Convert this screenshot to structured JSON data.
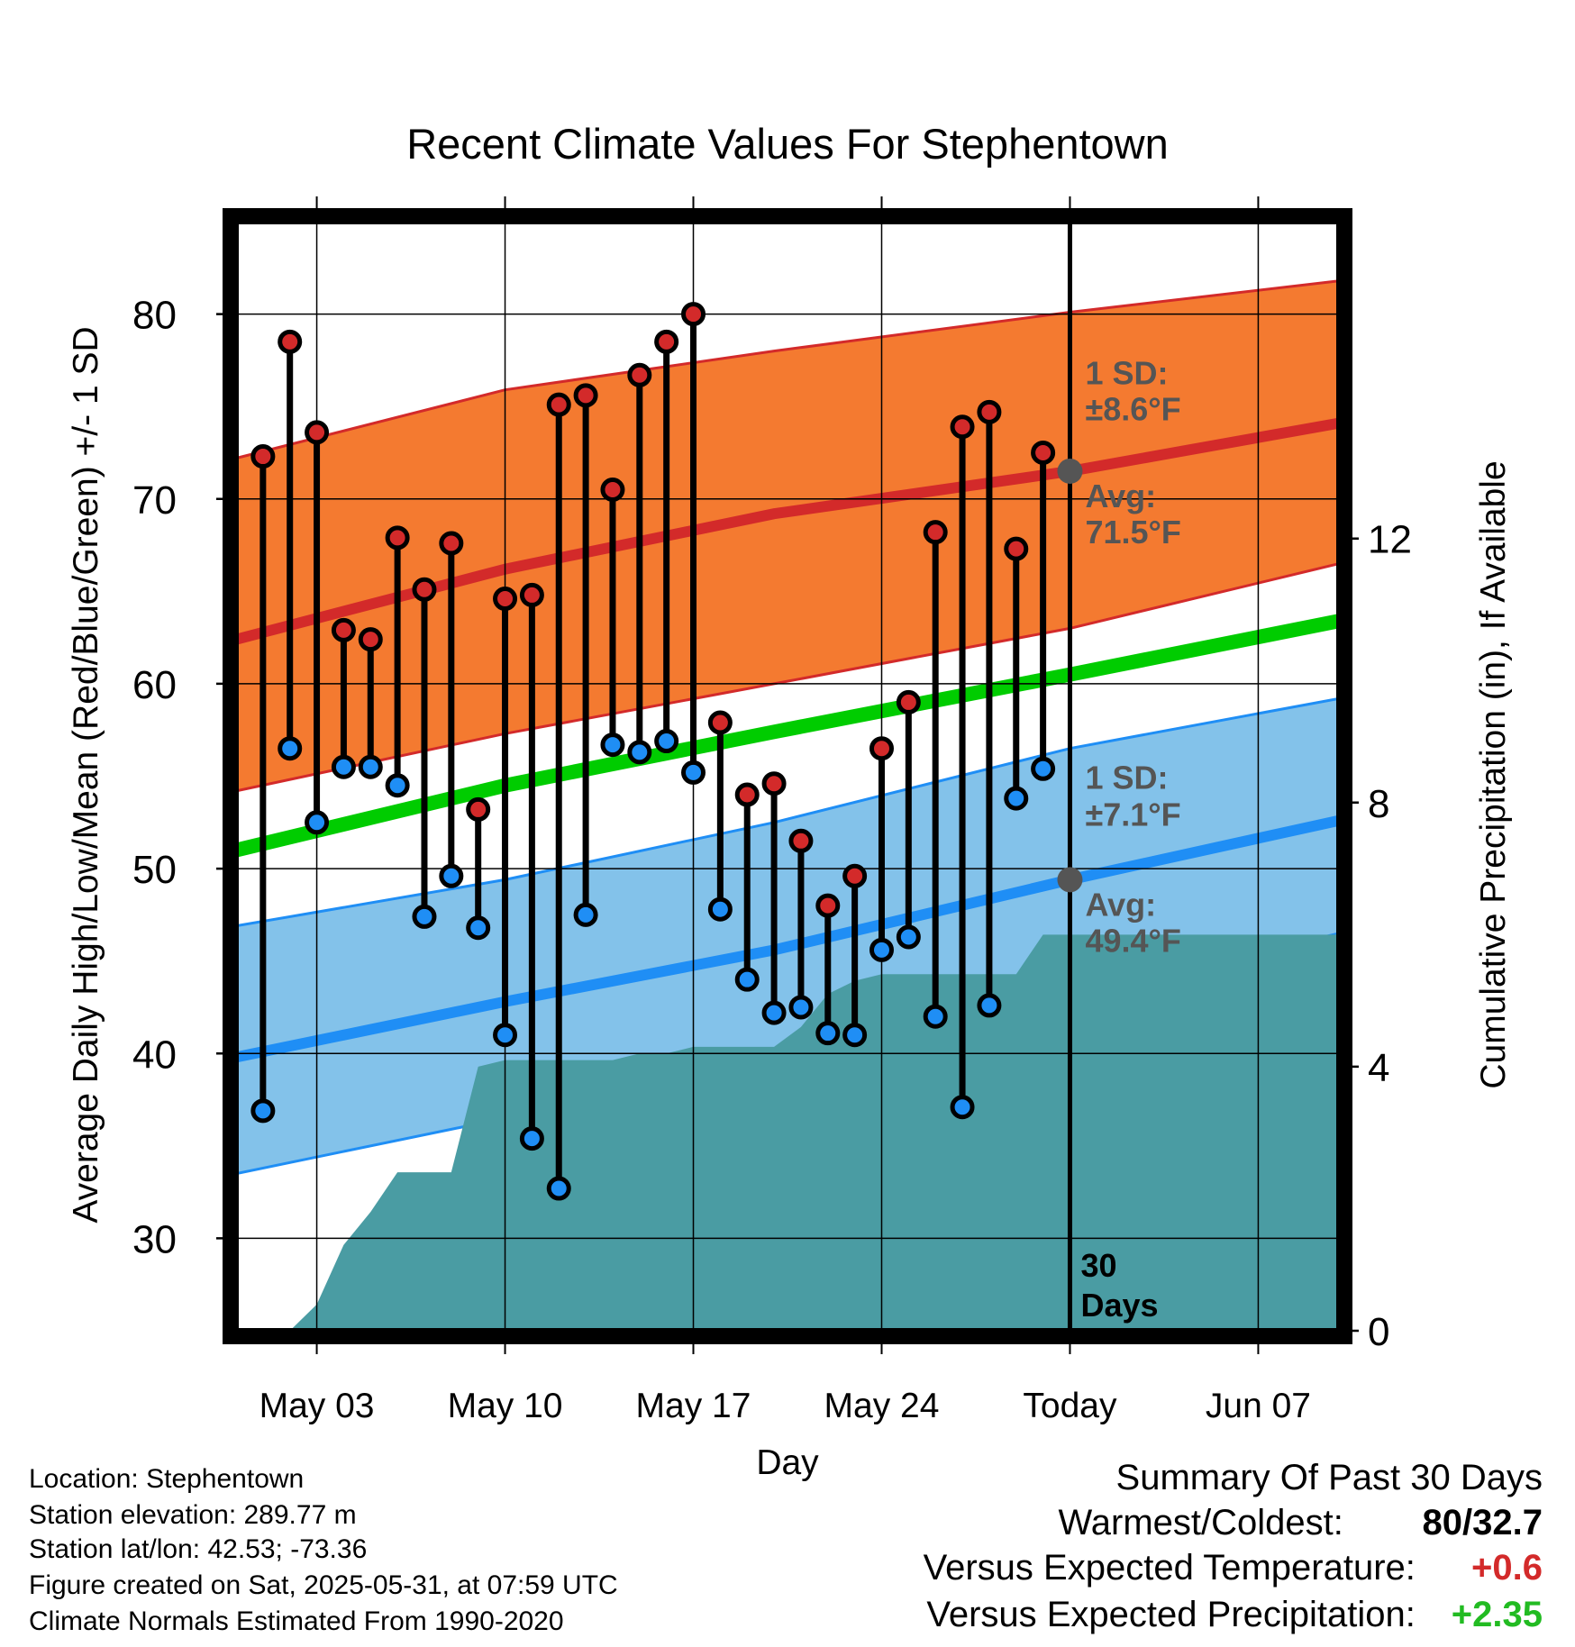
{
  "chart_data": {
    "type": "line",
    "title": "Recent Climate Values For Stephentown",
    "xlabel": "Day",
    "ylabel": "Average Daily High/Low/Mean (Red/Blue/Green) +/- 1 SD",
    "y2label": "Cumulative Precipitation (in), If Available",
    "x_range": [
      "2025-04-30",
      "2025-06-10"
    ],
    "y_range": [
      25,
      85
    ],
    "y2_range": [
      0,
      16.8
    ],
    "y_ticks": [
      "30",
      "40",
      "50",
      "60",
      "70",
      "80"
    ],
    "y2_ticks": [
      "0",
      "4",
      "8",
      "12"
    ],
    "x_ticks": [
      {
        "date": "2025-05-03",
        "label": "May 03"
      },
      {
        "date": "2025-05-10",
        "label": "May 10"
      },
      {
        "date": "2025-05-17",
        "label": "May 17"
      },
      {
        "date": "2025-05-24",
        "label": "May 24"
      },
      {
        "date": "2025-05-31",
        "label": "Today"
      },
      {
        "date": "2025-06-07",
        "label": "Jun 07"
      }
    ],
    "grid": true,
    "today": "2025-05-31",
    "today_label": "30\nDays",
    "colors": {
      "high": "#d32a2a",
      "low": "#1f8ef5",
      "mean": "#00cc00",
      "high_band": "#f47a30",
      "low_band": "#83c2ea",
      "precip": "#4a9ca3",
      "avg_dot": "#555555",
      "annotation": "#555555"
    },
    "normals": {
      "dates": [
        "2025-04-30",
        "2025-05-10",
        "2025-05-20",
        "2025-05-31",
        "2025-06-10"
      ],
      "high": [
        62.4,
        66.2,
        69.2,
        71.5,
        74.1
      ],
      "high_sd_upper": [
        72.2,
        75.9,
        78.0,
        80.1,
        81.8
      ],
      "high_sd_lower": [
        54.2,
        57.3,
        60.0,
        63.0,
        66.5
      ],
      "low": [
        39.8,
        42.8,
        45.6,
        49.4,
        52.6
      ],
      "low_sd_upper": [
        46.9,
        49.4,
        52.5,
        56.5,
        59.2
      ],
      "low_sd_lower": [
        33.5,
        36.5,
        39.5,
        43.1,
        46.5
      ],
      "mean": [
        51.0,
        54.5,
        57.4,
        60.5,
        63.4
      ]
    },
    "series": [
      {
        "name": "High",
        "x": [
          "2025-05-01",
          "2025-05-02",
          "2025-05-03",
          "2025-05-04",
          "2025-05-05",
          "2025-05-06",
          "2025-05-07",
          "2025-05-08",
          "2025-05-09",
          "2025-05-10",
          "2025-05-11",
          "2025-05-12",
          "2025-05-13",
          "2025-05-14",
          "2025-05-15",
          "2025-05-16",
          "2025-05-17",
          "2025-05-18",
          "2025-05-19",
          "2025-05-20",
          "2025-05-21",
          "2025-05-22",
          "2025-05-23",
          "2025-05-24",
          "2025-05-25",
          "2025-05-26",
          "2025-05-27",
          "2025-05-28",
          "2025-05-29",
          "2025-05-30"
        ],
        "values": [
          72.3,
          78.5,
          73.6,
          62.9,
          62.4,
          67.9,
          65.1,
          67.6,
          53.2,
          64.6,
          64.8,
          75.1,
          75.6,
          70.5,
          76.7,
          78.5,
          80.0,
          57.9,
          54.0,
          54.6,
          51.5,
          48.0,
          49.6,
          56.5,
          59.0,
          68.2,
          73.9,
          74.7,
          67.3,
          72.5
        ]
      },
      {
        "name": "Low",
        "x": [
          "2025-05-01",
          "2025-05-02",
          "2025-05-03",
          "2025-05-04",
          "2025-05-05",
          "2025-05-06",
          "2025-05-07",
          "2025-05-08",
          "2025-05-09",
          "2025-05-10",
          "2025-05-11",
          "2025-05-12",
          "2025-05-13",
          "2025-05-14",
          "2025-05-15",
          "2025-05-16",
          "2025-05-17",
          "2025-05-18",
          "2025-05-19",
          "2025-05-20",
          "2025-05-21",
          "2025-05-22",
          "2025-05-23",
          "2025-05-24",
          "2025-05-25",
          "2025-05-26",
          "2025-05-27",
          "2025-05-28",
          "2025-05-29",
          "2025-05-30"
        ],
        "values": [
          36.9,
          56.5,
          52.5,
          55.5,
          55.5,
          54.5,
          47.4,
          49.6,
          46.8,
          41.0,
          35.4,
          32.7,
          47.5,
          56.7,
          56.3,
          56.9,
          55.2,
          47.8,
          44.0,
          42.2,
          42.5,
          41.1,
          41.0,
          45.6,
          46.3,
          42.0,
          37.1,
          42.6,
          53.8,
          55.4
        ]
      },
      {
        "name": "Cumulative Precipitation",
        "axis": "y2",
        "x": [
          "2025-05-01",
          "2025-05-02",
          "2025-05-03",
          "2025-05-04",
          "2025-05-05",
          "2025-05-06",
          "2025-05-07",
          "2025-05-08",
          "2025-05-09",
          "2025-05-10",
          "2025-05-11",
          "2025-05-12",
          "2025-05-13",
          "2025-05-14",
          "2025-05-15",
          "2025-05-16",
          "2025-05-17",
          "2025-05-18",
          "2025-05-19",
          "2025-05-20",
          "2025-05-21",
          "2025-05-22",
          "2025-05-23",
          "2025-05-24",
          "2025-05-25",
          "2025-05-26",
          "2025-05-27",
          "2025-05-28",
          "2025-05-29",
          "2025-05-30",
          "2025-05-31",
          "2025-06-10"
        ],
        "values": [
          0,
          0,
          0.4,
          1.3,
          1.8,
          2.4,
          2.4,
          2.4,
          4.0,
          4.1,
          4.1,
          4.1,
          4.1,
          4.1,
          4.2,
          4.2,
          4.3,
          4.3,
          4.3,
          4.3,
          4.6,
          5.1,
          5.3,
          5.4,
          5.4,
          5.4,
          5.4,
          5.4,
          5.4,
          6.0,
          6.0,
          6.0
        ]
      }
    ],
    "annotations": {
      "high_sd_label": "1 SD:",
      "high_sd_value": "±8.6°F",
      "high_avg_label": "Avg:",
      "high_avg_value": "71.5°F",
      "low_sd_label": "1 SD:",
      "low_sd_value": "±7.1°F",
      "low_avg_label": "Avg:",
      "low_avg_value": "49.4°F"
    }
  },
  "footer": {
    "location": "Location: Stephentown",
    "elevation": "Station elevation: 289.77 m",
    "latlon": "Station lat/lon: 42.53; -73.36",
    "created": "Figure created on Sat, 2025-05-31, at 07:59 UTC",
    "normals": "Climate Normals Estimated From 1990-2020"
  },
  "summary": {
    "title": "Summary Of Past 30 Days",
    "warmest_coldest_label": "Warmest/Coldest:",
    "warmest_coldest_value": "80/32.7",
    "temp_label": "Versus Expected Temperature:",
    "temp_value": "+0.6",
    "temp_color": "#d32a2a",
    "precip_label": "Versus Expected Precipitation:",
    "precip_value": "+2.35",
    "precip_color": "#22bb22"
  }
}
